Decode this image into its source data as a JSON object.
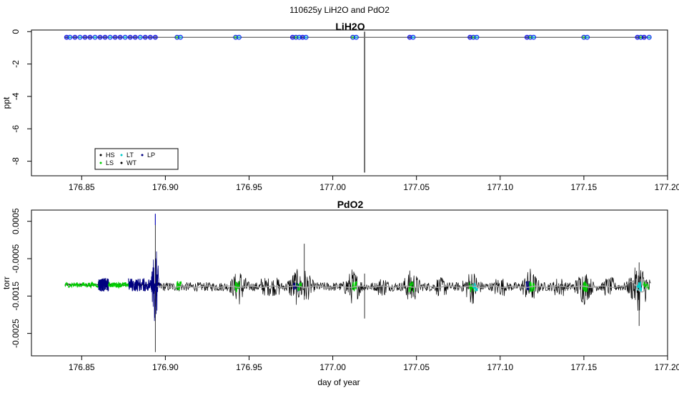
{
  "figure": {
    "title": "110625y   LiH2O and PdO2"
  },
  "colors": {
    "HS": "#000000",
    "LS": "#00cc00",
    "LT": "#00cccc",
    "WT": "#000000",
    "LP": "#000080",
    "overlay": "#aaaaaa",
    "open_circle": "#0000ff"
  },
  "chart_data": [
    {
      "type": "line",
      "title": "LiH2O",
      "xlabel": "",
      "ylabel": "ppt",
      "xlim": [
        176.82,
        177.2
      ],
      "ylim": [
        -8.9,
        0.1
      ],
      "xticks": [
        "176.85",
        "176.90",
        "176.95",
        "177.00",
        "177.05",
        "177.10",
        "177.15",
        "177.20"
      ],
      "yticks": [
        "0",
        "-2",
        "-4",
        "-6",
        "-8"
      ],
      "ytick_values": [
        0,
        -2,
        -4,
        -6,
        -8
      ],
      "baseline": -0.35,
      "spike": {
        "x": 177.019,
        "y": -8.7
      },
      "legend": {
        "placement": "bottom-left",
        "entries": [
          "HS",
          "LT",
          "LP",
          "LS",
          "WT"
        ],
        "colors": [
          "#000000",
          "#00cccc",
          "#000080",
          "#00cc00",
          "#000000"
        ]
      },
      "points": [
        {
          "x": 176.841,
          "series": "LP"
        },
        {
          "x": 176.843,
          "series": "LT"
        },
        {
          "x": 176.846,
          "series": "LP"
        },
        {
          "x": 176.849,
          "series": "LT"
        },
        {
          "x": 176.852,
          "series": "LP"
        },
        {
          "x": 176.855,
          "series": "LP"
        },
        {
          "x": 176.858,
          "series": "LT"
        },
        {
          "x": 176.861,
          "series": "LP"
        },
        {
          "x": 176.864,
          "series": "LP"
        },
        {
          "x": 176.867,
          "series": "LT"
        },
        {
          "x": 176.87,
          "series": "LP"
        },
        {
          "x": 176.873,
          "series": "LP"
        },
        {
          "x": 176.876,
          "series": "LT"
        },
        {
          "x": 176.879,
          "series": "LP"
        },
        {
          "x": 176.882,
          "series": "LP"
        },
        {
          "x": 176.885,
          "series": "LT"
        },
        {
          "x": 176.888,
          "series": "LP"
        },
        {
          "x": 176.891,
          "series": "LP"
        },
        {
          "x": 176.894,
          "series": "LP"
        },
        {
          "x": 176.907,
          "series": "LS"
        },
        {
          "x": 176.909,
          "series": "LT"
        },
        {
          "x": 176.942,
          "series": "LS"
        },
        {
          "x": 176.944,
          "series": "LT"
        },
        {
          "x": 176.976,
          "series": "LP"
        },
        {
          "x": 176.978,
          "series": "LS"
        },
        {
          "x": 176.98,
          "series": "LT"
        },
        {
          "x": 176.982,
          "series": "LP"
        },
        {
          "x": 176.984,
          "series": "LT"
        },
        {
          "x": 177.012,
          "series": "LS"
        },
        {
          "x": 177.014,
          "series": "LT"
        },
        {
          "x": 177.046,
          "series": "LP"
        },
        {
          "x": 177.048,
          "series": "LT"
        },
        {
          "x": 177.082,
          "series": "LP"
        },
        {
          "x": 177.084,
          "series": "LS"
        },
        {
          "x": 177.086,
          "series": "LT"
        },
        {
          "x": 177.116,
          "series": "LP"
        },
        {
          "x": 177.118,
          "series": "LS"
        },
        {
          "x": 177.12,
          "series": "LT"
        },
        {
          "x": 177.15,
          "series": "LS"
        },
        {
          "x": 177.152,
          "series": "LT"
        },
        {
          "x": 177.182,
          "series": "LP"
        },
        {
          "x": 177.184,
          "series": "LS"
        },
        {
          "x": 177.186,
          "series": "LP"
        },
        {
          "x": 177.189,
          "series": "LT"
        }
      ]
    },
    {
      "type": "line",
      "title": "PdO2",
      "xlabel": "day of year",
      "ylabel": "torr",
      "xlim": [
        176.82,
        177.2
      ],
      "ylim": [
        -0.0031,
        0.0008
      ],
      "xticks": [
        "176.85",
        "176.90",
        "176.95",
        "177.00",
        "177.05",
        "177.10",
        "177.15",
        "177.20"
      ],
      "yticks": [
        "0.0005",
        "-0.0005",
        "-0.0015",
        "-0.0025"
      ],
      "ytick_values": [
        0.0005,
        -0.0005,
        -0.0015,
        -0.0025
      ],
      "baseline": -0.0012,
      "burst_regions": [
        {
          "x": [
            176.84,
            176.86
          ],
          "series": "LS"
        },
        {
          "x": [
            176.86,
            176.866
          ],
          "series": "LP"
        },
        {
          "x": [
            176.866,
            176.878
          ],
          "series": "LS"
        },
        {
          "x": [
            176.878,
            176.895
          ],
          "series": "LP"
        }
      ],
      "events": [
        {
          "x": 176.894,
          "ymax": 0.0007,
          "ymin": -0.003
        },
        {
          "x": 177.019,
          "ymax": -0.0009,
          "ymin": -0.0021
        },
        {
          "x": 176.983,
          "ymax": -0.0001,
          "ymin": -0.0016
        },
        {
          "x": 177.183,
          "ymax": -0.0006,
          "ymin": -0.0023
        }
      ]
    }
  ],
  "legend_labels": {
    "hs": "HS",
    "lt": "LT",
    "lp": "LP",
    "ls": "LS",
    "wt": "WT"
  }
}
